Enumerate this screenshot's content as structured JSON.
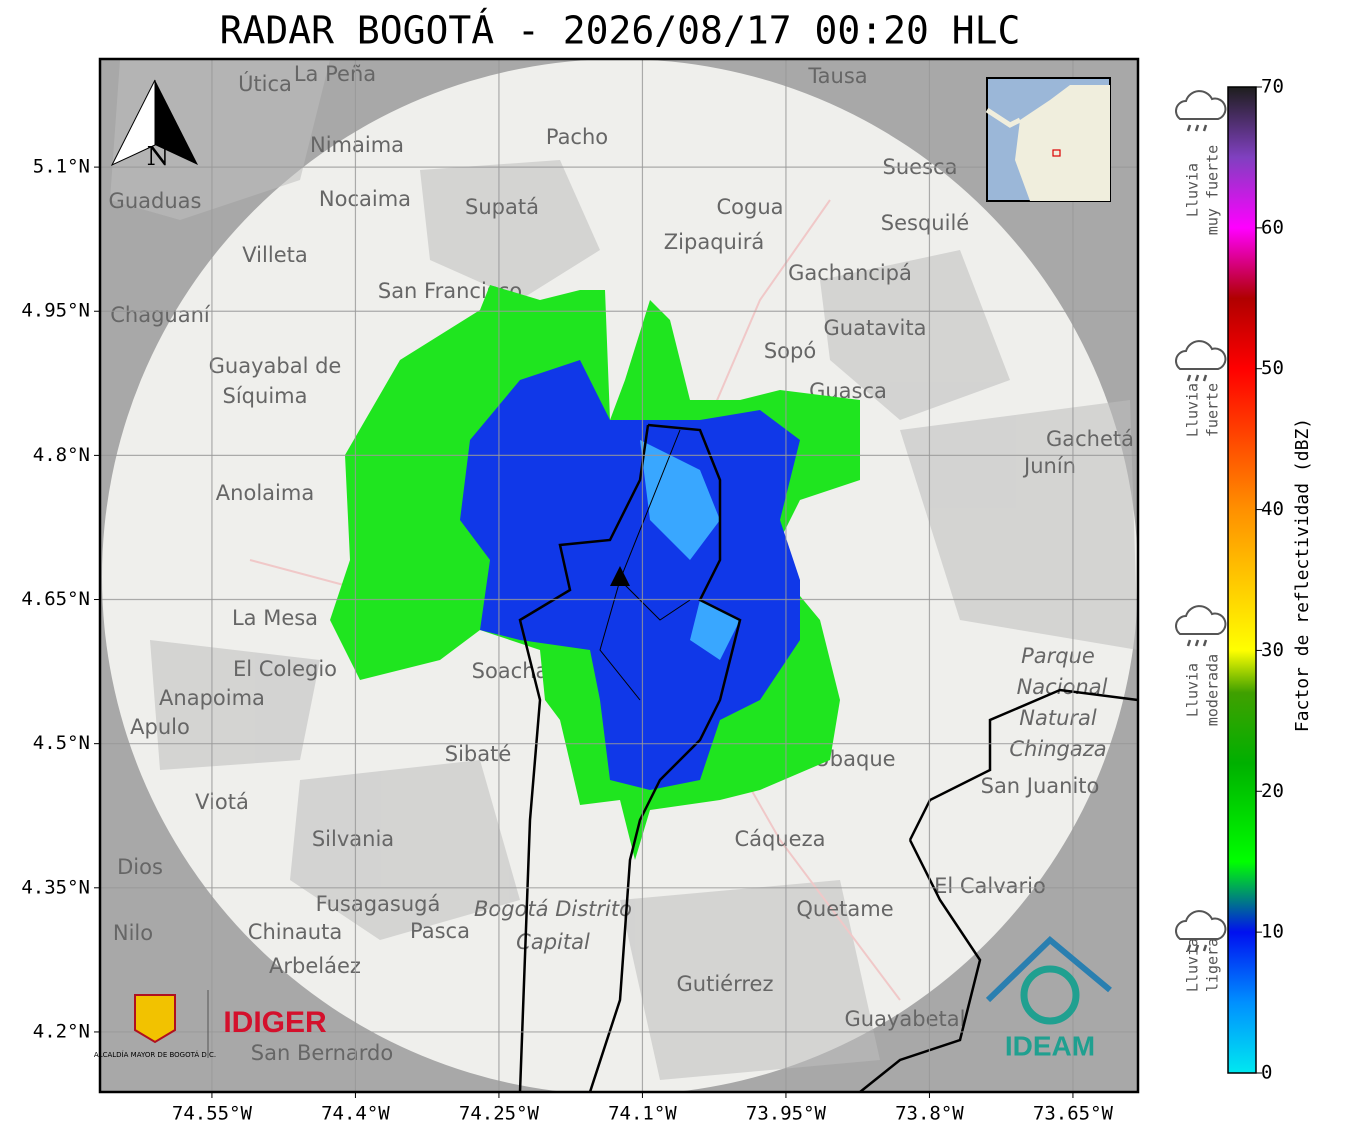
{
  "title": "RADAR BOGOTÁ - 2026/08/17 00:20 HLC",
  "map": {
    "xlim": [
      -74.667,
      -73.582
    ],
    "ylim": [
      4.1375,
      5.2125
    ],
    "xticks": [
      {
        "value": -74.55,
        "label": "74.55°W"
      },
      {
        "value": -74.4,
        "label": "74.4°W"
      },
      {
        "value": -74.25,
        "label": "74.25°W"
      },
      {
        "value": -74.1,
        "label": "74.1°W"
      },
      {
        "value": -73.95,
        "label": "73.95°W"
      },
      {
        "value": -73.8,
        "label": "73.8°W"
      },
      {
        "value": -73.65,
        "label": "73.65°W"
      }
    ],
    "yticks": [
      {
        "value": 5.1,
        "label": "5.1°N"
      },
      {
        "value": 4.95,
        "label": "4.95°N"
      },
      {
        "value": 4.8,
        "label": "4.8°N"
      },
      {
        "value": 4.65,
        "label": "4.65°N"
      },
      {
        "value": 4.5,
        "label": "4.5°N"
      },
      {
        "value": 4.35,
        "label": "4.35°N"
      },
      {
        "value": 4.2,
        "label": "4.2°N"
      }
    ],
    "grid": true,
    "north": "N",
    "places": [
      "La Peña",
      "Útica",
      "Tausa",
      "Pacho",
      "Nimaima",
      "Suesca",
      "Guaduas",
      "Nocaima",
      "Supatá",
      "Cogua",
      "Zipaquirá",
      "Sesquilé",
      "Villeta",
      "San Francisco",
      "Gachancipá",
      "Chaguaní",
      "Guatavita",
      "Sopó",
      "Guayabal de",
      "Síquima",
      "Guasca",
      "Gachetá",
      "Junín",
      "Anolaima",
      "La Mesa",
      "El Colegio",
      "Soacha",
      "Anapoima",
      "Apulo",
      "Parque",
      "Nacional",
      "Natural",
      "Chingaza",
      "Sibaté",
      "Ubaque",
      "San Juanito",
      "Viotá",
      "Silvania",
      "Cáqueza",
      "Dios",
      "El Calvario",
      "Fusagasugá",
      "Bogotá Distrito",
      "Capital",
      "Quetame",
      "Nilo",
      "Chinauta",
      "Pasca",
      "Arbeláez",
      "Gutiérrez",
      "Guayabetal",
      "San Bernardo"
    ],
    "logos": {
      "left": "IDIGER",
      "left_small": "ALCALDÍA MAYOR DE BOGOTÁ D.C.",
      "right": "IDEAM"
    }
  },
  "colorbar": {
    "lim": [
      0,
      70
    ],
    "ticks": [
      0,
      10,
      20,
      30,
      40,
      50,
      60,
      70
    ],
    "label": "Factor de reflectividad (dBZ)",
    "colorscale": [
      [
        0,
        "#00e8f0"
      ],
      [
        5,
        "#0090ff"
      ],
      [
        10,
        "#0010f0"
      ],
      [
        15,
        "#00ff00"
      ],
      [
        22,
        "#00b000"
      ],
      [
        27,
        "#40a000"
      ],
      [
        30,
        "#ffff00"
      ],
      [
        40,
        "#ff9000"
      ],
      [
        50,
        "#ff0000"
      ],
      [
        55,
        "#b00000"
      ],
      [
        60,
        "#ff00ff"
      ],
      [
        65,
        "#8040c0"
      ],
      [
        70,
        "#1e1e1e"
      ]
    ]
  },
  "rain_levels": [
    [
      "Lluvia",
      "muy fuerte"
    ],
    [
      "Lluvia",
      "fuerte"
    ],
    [
      "Lluvia",
      "moderada"
    ],
    [
      "Lluvia",
      "ligera"
    ]
  ]
}
